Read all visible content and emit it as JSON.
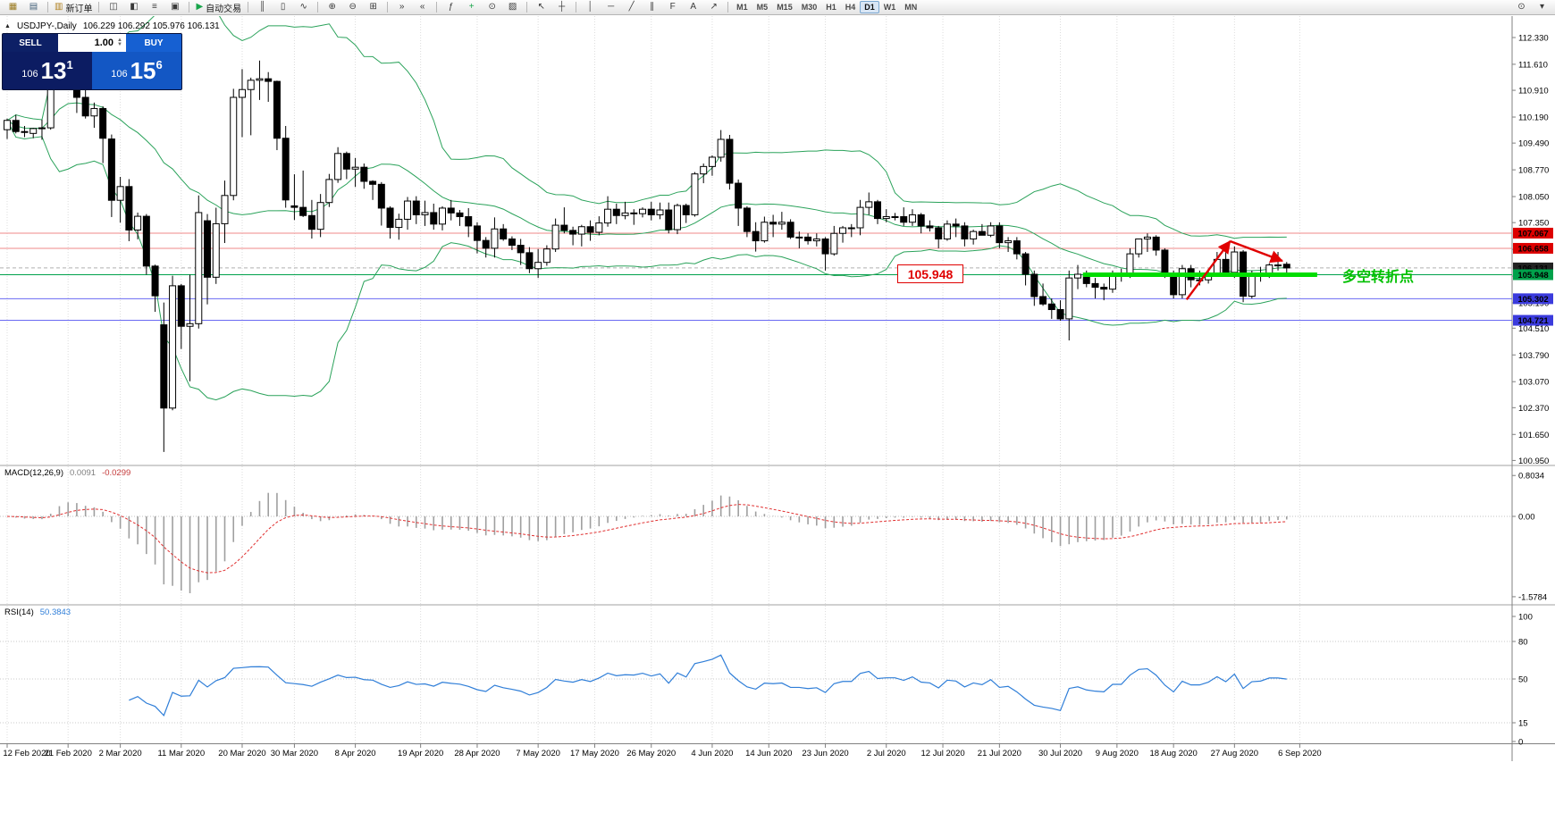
{
  "toolbar": {
    "groups": [
      {
        "items": [
          {
            "name": "new-chart",
            "g": "▦",
            "c": "#9a7a20"
          },
          {
            "name": "chart-profiles",
            "g": "▤",
            "c": "#44617a"
          }
        ]
      },
      {
        "items": [
          {
            "name": "new-order",
            "g": "▥",
            "c": "#b08020",
            "label": "新订单"
          }
        ]
      },
      {
        "items": [
          {
            "name": "market-watch",
            "g": "◫",
            "c": "#3a3a3a"
          },
          {
            "name": "data-window",
            "g": "◧",
            "c": "#3a3a3a"
          },
          {
            "name": "navigator",
            "g": "≡",
            "c": "#3a3a3a"
          },
          {
            "name": "terminal",
            "g": "▣",
            "c": "#3a3a3a"
          }
        ]
      },
      {
        "items": [
          {
            "name": "autotrade",
            "g": "▶",
            "c": "#18a54a",
            "label": "自动交易"
          }
        ]
      },
      {
        "items": [
          {
            "name": "chart-bars",
            "g": "║",
            "c": "#3a3a3a"
          },
          {
            "name": "chart-candles",
            "g": "▯",
            "c": "#3a3a3a"
          },
          {
            "name": "chart-line",
            "g": "∿",
            "c": "#3a3a3a"
          }
        ]
      },
      {
        "items": [
          {
            "name": "zoom-in",
            "g": "⊕",
            "c": "#3a3a3a"
          },
          {
            "name": "zoom-out",
            "g": "⊖",
            "c": "#3a3a3a"
          },
          {
            "name": "tile-windows",
            "g": "⊞",
            "c": "#3a3a3a"
          }
        ]
      },
      {
        "items": [
          {
            "name": "auto-scroll",
            "g": "»",
            "c": "#3a3a3a"
          },
          {
            "name": "chart-shift",
            "g": "«",
            "c": "#3a3a3a"
          }
        ]
      },
      {
        "items": [
          {
            "name": "indicators",
            "g": "ƒ",
            "c": "#3a3a3a"
          },
          {
            "name": "add-indicator",
            "g": "+",
            "c": "#18a54a"
          },
          {
            "name": "periods",
            "g": "⊙",
            "c": "#3a3a3a"
          },
          {
            "name": "templates",
            "g": "▨",
            "c": "#3a3a3a"
          }
        ]
      },
      {
        "items": [
          {
            "name": "cursor",
            "g": "↖",
            "c": "#3a3a3a"
          },
          {
            "name": "crosshair",
            "g": "┼",
            "c": "#3a3a3a"
          }
        ]
      },
      {
        "items": [
          {
            "name": "vertical-line",
            "g": "│",
            "c": "#3a3a3a"
          },
          {
            "name": "horizontal-line",
            "g": "─",
            "c": "#3a3a3a"
          },
          {
            "name": "trendline",
            "g": "╱",
            "c": "#3a3a3a"
          },
          {
            "name": "channel",
            "g": "∥",
            "c": "#3a3a3a"
          },
          {
            "name": "fibonacci",
            "g": "F",
            "c": "#3a3a3a"
          },
          {
            "name": "text-tool",
            "g": "A",
            "c": "#3a3a3a"
          },
          {
            "name": "arrow-tool",
            "g": "↗",
            "c": "#3a3a3a"
          }
        ]
      }
    ],
    "timeframes": [
      {
        "label": "M1"
      },
      {
        "label": "M5"
      },
      {
        "label": "M15"
      },
      {
        "label": "M30"
      },
      {
        "label": "H1"
      },
      {
        "label": "H4"
      },
      {
        "label": "D1",
        "active": true
      },
      {
        "label": "W1"
      },
      {
        "label": "MN"
      }
    ],
    "right_items": [
      {
        "name": "search",
        "g": "⊙"
      },
      {
        "name": "layout-menu",
        "g": "▾"
      }
    ]
  },
  "chart": {
    "collapse_icon": "▲",
    "symbol_period": "USDJPY-,Daily",
    "ohlc": "106.229 106.292 105.976 106.131"
  },
  "trade_panel": {
    "sell_label": "SELL",
    "buy_label": "BUY",
    "lot": "1.00",
    "sell_big": "106",
    "sell_pips": "13",
    "sell_pt": "1",
    "buy_big": "106",
    "buy_pips": "15",
    "buy_pt": "6"
  },
  "indicators": {
    "macd_name": "MACD(12,26,9)",
    "macd_value1": "0.0091",
    "macd_value2": "-0.0299",
    "macd_axis": [
      "0.8034",
      "0.00",
      "-1.5784"
    ],
    "rsi_name": "RSI(14)",
    "rsi_value": "50.3843",
    "rsi_axis": [
      "100",
      "80",
      "50",
      "15",
      "0"
    ]
  },
  "annotations": {
    "price_note": "105.948",
    "turning_point": "多空转折点"
  },
  "chart_data": {
    "type": "candlestick",
    "symbol": "USDJPY",
    "period": "Daily",
    "price_axis_ticks": [
      "112.330",
      "111.610",
      "110.910",
      "110.190",
      "109.490",
      "108.770",
      "108.050",
      "107.350",
      "106.630",
      "105.910",
      "105.190",
      "104.510",
      "103.790",
      "103.070",
      "102.370",
      "101.650",
      "100.950"
    ],
    "hlines": [
      {
        "price": 107.067,
        "line_color": "#ef8a8a",
        "dash": false,
        "tag": "107.067",
        "tag_bg": "#dd0000"
      },
      {
        "price": 106.658,
        "line_color": "#ef8a8a",
        "dash": false,
        "tag": "106.658",
        "tag_bg": "#dd0000"
      },
      {
        "price": 106.131,
        "line_color": "#b0b0b0",
        "dash": true,
        "tag": "106.131",
        "tag_bg": "#222222"
      },
      {
        "price": 105.948,
        "line_color": "#00a14b",
        "dash": false,
        "tag": "105.948",
        "tag_bg": "#00a14b"
      },
      {
        "price": 105.302,
        "line_color": "#6a6af2",
        "dash": false,
        "tag": "105.302",
        "tag_bg": "#3b3bdd"
      },
      {
        "price": 104.721,
        "line_color": "#6a6af2",
        "dash": false,
        "tag": "104.721",
        "tag_bg": "#3b3bdd"
      }
    ],
    "support_segment": {
      "price": 105.948,
      "from_index": 124,
      "to_index": 150.5,
      "color": "#00dd00",
      "width": 5
    },
    "trend_arrows": [
      [
        135.5,
        105.28,
        140.5,
        106.85
      ],
      [
        140.5,
        106.85,
        146.5,
        106.32
      ]
    ],
    "bollinger": {
      "period": 20,
      "deviation": 2,
      "color": "#2aa25a"
    },
    "macd": {
      "fast": 12,
      "slow": 26,
      "signal": 9
    },
    "rsi": {
      "period": 14,
      "levels": [
        80,
        50,
        15
      ]
    },
    "dates": [
      [
        "12 Feb 2020",
        0
      ],
      [
        "21 Feb 2020",
        7
      ],
      [
        "2 Mar 2020",
        13
      ],
      [
        "11 Mar 2020",
        20
      ],
      [
        "20 Mar 2020",
        27
      ],
      [
        "30 Mar 2020",
        33
      ],
      [
        "8 Apr 2020",
        40
      ],
      [
        "19 Apr 2020",
        47.5
      ],
      [
        "28 Apr 2020",
        54
      ],
      [
        "7 May 2020",
        61
      ],
      [
        "17 May 2020",
        67.5
      ],
      [
        "26 May 2020",
        74
      ],
      [
        "4 Jun 2020",
        81
      ],
      [
        "14 Jun 2020",
        87.5
      ],
      [
        "23 Jun 2020",
        94
      ],
      [
        "2 Jul 2020",
        101
      ],
      [
        "12 Jul 2020",
        107.5
      ],
      [
        "21 Jul 2020",
        114
      ],
      [
        "30 Jul 2020",
        121
      ],
      [
        "9 Aug 2020",
        127.5
      ],
      [
        "18 Aug 2020",
        134
      ],
      [
        "27 Aug 2020",
        141
      ],
      [
        "6 Sep 2020",
        148.5
      ]
    ],
    "candles": [
      [
        109.85,
        110.15,
        109.6,
        110.1
      ],
      [
        110.1,
        110.25,
        109.75,
        109.8
      ],
      [
        109.8,
        109.95,
        109.65,
        109.78
      ],
      [
        109.75,
        109.9,
        109.62,
        109.88
      ],
      [
        109.88,
        110.12,
        109.58,
        109.9
      ],
      [
        109.9,
        111.35,
        109.85,
        111.28
      ],
      [
        111.28,
        112.22,
        111.1,
        112.08
      ],
      [
        112.05,
        112.18,
        111.45,
        111.6
      ],
      [
        111.35,
        111.65,
        110.3,
        110.72
      ],
      [
        110.72,
        110.95,
        110.15,
        110.22
      ],
      [
        110.22,
        110.58,
        109.9,
        110.42
      ],
      [
        110.42,
        110.48,
        108.95,
        109.62
      ],
      [
        109.6,
        109.72,
        107.5,
        107.95
      ],
      [
        107.95,
        108.58,
        107.35,
        108.32
      ],
      [
        108.32,
        108.52,
        106.85,
        107.15
      ],
      [
        107.15,
        107.62,
        106.9,
        107.52
      ],
      [
        107.52,
        107.58,
        105.95,
        106.18
      ],
      [
        106.18,
        106.22,
        104.95,
        105.38
      ],
      [
        104.6,
        105.2,
        101.18,
        102.36
      ],
      [
        102.36,
        105.92,
        102.3,
        105.65
      ],
      [
        105.65,
        105.7,
        103.95,
        104.56
      ],
      [
        104.56,
        105.95,
        103.08,
        104.63
      ],
      [
        104.63,
        108.08,
        104.5,
        107.62
      ],
      [
        107.4,
        107.58,
        105.15,
        105.88
      ],
      [
        105.88,
        107.75,
        105.7,
        107.32
      ],
      [
        107.32,
        108.48,
        106.8,
        108.08
      ],
      [
        108.08,
        110.95,
        107.95,
        110.72
      ],
      [
        110.72,
        111.48,
        109.65,
        110.93
      ],
      [
        110.93,
        111.25,
        109.7,
        111.18
      ],
      [
        111.18,
        111.71,
        110.65,
        111.22
      ],
      [
        111.22,
        111.4,
        110.6,
        111.15
      ],
      [
        111.15,
        111.17,
        109.3,
        109.62
      ],
      [
        109.62,
        109.95,
        107.75,
        107.96
      ],
      [
        107.8,
        108.65,
        107.42,
        107.76
      ],
      [
        107.76,
        108.75,
        107.5,
        107.54
      ],
      [
        107.54,
        107.96,
        106.92,
        107.17
      ],
      [
        107.17,
        108.12,
        106.96,
        107.89
      ],
      [
        107.89,
        108.66,
        107.77,
        108.51
      ],
      [
        108.51,
        109.38,
        108.42,
        109.21
      ],
      [
        109.21,
        109.26,
        108.52,
        108.79
      ],
      [
        108.79,
        109.09,
        108.31,
        108.84
      ],
      [
        108.84,
        108.94,
        108.26,
        108.46
      ],
      [
        108.46,
        108.49,
        107.96,
        108.38
      ],
      [
        108.38,
        108.44,
        107.27,
        107.74
      ],
      [
        107.74,
        107.79,
        106.92,
        107.22
      ],
      [
        107.22,
        107.59,
        106.89,
        107.44
      ],
      [
        107.44,
        108.04,
        107.16,
        107.93
      ],
      [
        107.93,
        108.06,
        107.31,
        107.56
      ],
      [
        107.56,
        107.94,
        107.26,
        107.62
      ],
      [
        107.62,
        107.86,
        107.16,
        107.31
      ],
      [
        107.31,
        107.79,
        107.14,
        107.74
      ],
      [
        107.74,
        107.96,
        107.41,
        107.61
      ],
      [
        107.61,
        107.69,
        107.26,
        107.51
      ],
      [
        107.51,
        107.74,
        106.96,
        107.26
      ],
      [
        107.26,
        107.36,
        106.52,
        106.87
      ],
      [
        106.87,
        106.96,
        106.41,
        106.66
      ],
      [
        106.66,
        107.49,
        106.41,
        107.18
      ],
      [
        107.18,
        107.31,
        106.86,
        106.91
      ],
      [
        106.91,
        106.98,
        106.61,
        106.74
      ],
      [
        106.74,
        106.91,
        106.21,
        106.54
      ],
      [
        106.54,
        106.69,
        105.99,
        106.11
      ],
      [
        106.11,
        106.64,
        105.86,
        106.28
      ],
      [
        106.28,
        106.74,
        106.19,
        106.64
      ],
      [
        106.64,
        107.46,
        106.56,
        107.28
      ],
      [
        107.28,
        107.76,
        107.06,
        107.14
      ],
      [
        107.14,
        107.24,
        106.74,
        107.04
      ],
      [
        107.04,
        107.29,
        106.71,
        107.24
      ],
      [
        107.24,
        107.41,
        106.86,
        107.09
      ],
      [
        107.09,
        107.52,
        107.01,
        107.34
      ],
      [
        107.34,
        108.06,
        107.24,
        107.71
      ],
      [
        107.71,
        107.86,
        107.31,
        107.54
      ],
      [
        107.54,
        107.91,
        107.44,
        107.61
      ],
      [
        107.61,
        107.71,
        107.29,
        107.59
      ],
      [
        107.59,
        107.76,
        107.49,
        107.71
      ],
      [
        107.71,
        107.91,
        107.41,
        107.56
      ],
      [
        107.56,
        107.89,
        107.44,
        107.69
      ],
      [
        107.69,
        107.89,
        107.06,
        107.16
      ],
      [
        107.16,
        107.86,
        107.04,
        107.81
      ],
      [
        107.81,
        107.86,
        107.34,
        107.56
      ],
      [
        107.56,
        108.71,
        107.51,
        108.66
      ],
      [
        108.66,
        108.94,
        108.41,
        108.86
      ],
      [
        108.86,
        109.16,
        108.61,
        109.11
      ],
      [
        109.11,
        109.84,
        108.99,
        109.59
      ],
      [
        109.59,
        109.71,
        108.24,
        108.41
      ],
      [
        108.41,
        108.51,
        107.26,
        107.74
      ],
      [
        107.74,
        107.79,
        106.96,
        107.11
      ],
      [
        107.11,
        107.36,
        106.57,
        106.86
      ],
      [
        106.86,
        107.51,
        106.81,
        107.36
      ],
      [
        107.36,
        107.56,
        106.96,
        107.31
      ],
      [
        107.31,
        107.64,
        107.16,
        107.36
      ],
      [
        107.36,
        107.44,
        106.91,
        106.96
      ],
      [
        106.96,
        107.11,
        106.66,
        106.96
      ],
      [
        106.96,
        107.06,
        106.76,
        106.86
      ],
      [
        106.86,
        107.06,
        106.71,
        106.91
      ],
      [
        106.91,
        106.96,
        106.06,
        106.51
      ],
      [
        106.51,
        107.26,
        106.46,
        107.06
      ],
      [
        107.06,
        107.26,
        106.81,
        107.21
      ],
      [
        107.21,
        107.31,
        106.96,
        107.21
      ],
      [
        107.21,
        107.96,
        107.01,
        107.76
      ],
      [
        107.76,
        108.16,
        107.56,
        107.91
      ],
      [
        107.91,
        107.96,
        107.31,
        107.46
      ],
      [
        107.46,
        107.71,
        107.36,
        107.51
      ],
      [
        107.51,
        107.61,
        107.41,
        107.51
      ],
      [
        107.51,
        107.76,
        107.26,
        107.36
      ],
      [
        107.36,
        107.71,
        107.26,
        107.56
      ],
      [
        107.56,
        107.61,
        107.06,
        107.26
      ],
      [
        107.26,
        107.41,
        107.11,
        107.21
      ],
      [
        107.21,
        107.26,
        106.66,
        106.91
      ],
      [
        106.91,
        107.41,
        106.86,
        107.31
      ],
      [
        107.31,
        107.46,
        106.96,
        107.26
      ],
      [
        107.26,
        107.36,
        106.71,
        106.91
      ],
      [
        106.91,
        107.16,
        106.76,
        107.11
      ],
      [
        107.11,
        107.31,
        107.01,
        107.01
      ],
      [
        107.01,
        107.36,
        106.96,
        107.26
      ],
      [
        107.26,
        107.36,
        106.66,
        106.81
      ],
      [
        106.81,
        106.96,
        106.56,
        106.86
      ],
      [
        106.86,
        106.96,
        106.36,
        106.51
      ],
      [
        106.51,
        106.56,
        105.66,
        105.96
      ],
      [
        105.96,
        106.06,
        105.11,
        105.36
      ],
      [
        105.36,
        105.71,
        105.11,
        105.16
      ],
      [
        105.16,
        105.31,
        104.76,
        105.01
      ],
      [
        105.01,
        105.26,
        104.71,
        104.76
      ],
      [
        104.76,
        106.06,
        104.18,
        105.86
      ],
      [
        105.86,
        106.21,
        105.56,
        105.96
      ],
      [
        105.96,
        106.06,
        105.61,
        105.71
      ],
      [
        105.71,
        105.86,
        105.31,
        105.61
      ],
      [
        105.61,
        105.71,
        105.26,
        105.56
      ],
      [
        105.56,
        106.06,
        105.46,
        105.96
      ],
      [
        105.96,
        106.11,
        105.76,
        105.96
      ],
      [
        105.96,
        106.66,
        105.86,
        106.51
      ],
      [
        106.51,
        106.91,
        106.41,
        106.91
      ],
      [
        106.91,
        107.06,
        106.56,
        106.96
      ],
      [
        106.96,
        107.01,
        106.46,
        106.61
      ],
      [
        106.61,
        106.66,
        105.86,
        105.96
      ],
      [
        105.96,
        106.06,
        105.31,
        105.41
      ],
      [
        105.41,
        106.21,
        105.31,
        106.11
      ],
      [
        106.11,
        106.21,
        105.61,
        105.81
      ],
      [
        105.81,
        106.06,
        105.66,
        105.81
      ],
      [
        105.81,
        106.11,
        105.71,
        105.99
      ],
      [
        105.99,
        106.56,
        105.91,
        106.36
      ],
      [
        106.36,
        106.61,
        106.01,
        106.01
      ],
      [
        106.01,
        106.71,
        105.86,
        106.56
      ],
      [
        106.56,
        106.61,
        105.21,
        105.37
      ],
      [
        105.37,
        106.06,
        105.31,
        105.91
      ],
      [
        105.91,
        106.16,
        105.76,
        105.96
      ],
      [
        105.96,
        106.26,
        105.86,
        106.21
      ],
      [
        106.21,
        106.56,
        106.06,
        106.21
      ],
      [
        106.23,
        106.29,
        105.98,
        106.13
      ]
    ]
  }
}
